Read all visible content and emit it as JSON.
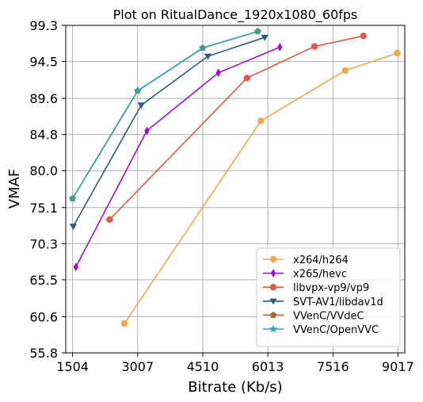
{
  "chart_data": {
    "type": "line",
    "title": "Plot on RitualDance_1920x1080_60fps",
    "xlabel": "Bitrate (Kb/s)",
    "ylabel": "VMAF",
    "xlim": [
      1504,
      9017
    ],
    "ylim": [
      55.8,
      99.3
    ],
    "xticks": [
      "1504",
      "3007",
      "4510",
      "6013",
      "7516",
      "9017"
    ],
    "xtick_values": [
      1504,
      3007,
      4510,
      6013,
      7516,
      9017
    ],
    "yticks": [
      "55.8",
      "60.6",
      "65.5",
      "70.3",
      "75.1",
      "80.0",
      "84.8",
      "89.6",
      "94.5",
      "99.3"
    ],
    "ytick_values": [
      55.8,
      60.6,
      65.5,
      70.3,
      75.1,
      80.0,
      84.8,
      89.6,
      94.5,
      99.3
    ],
    "grid": true,
    "legend_position": "bottom-right",
    "series": [
      {
        "name": "x264/h264",
        "color": "#f0a848",
        "marker": "circle",
        "x": [
          2700,
          5850,
          7800,
          9000
        ],
        "y": [
          59.7,
          86.6,
          93.3,
          95.6
        ]
      },
      {
        "name": "x265/hevc",
        "color": "#9b10d8",
        "marker": "diamond",
        "x": [
          1580,
          3220,
          4870,
          6290
        ],
        "y": [
          67.2,
          85.3,
          93.0,
          96.4
        ]
      },
      {
        "name": "libvpx-vp9/vp9",
        "color": "#e05846",
        "marker": "circle",
        "x": [
          2360,
          5530,
          7090,
          8220
        ],
        "y": [
          73.5,
          92.3,
          96.5,
          97.9
        ]
      },
      {
        "name": "SVT-AV1/libdav1d",
        "color": "#2e5b7c",
        "marker": "triangle-down",
        "x": [
          1520,
          3090,
          4630,
          5940
        ],
        "y": [
          72.6,
          88.7,
          95.2,
          97.7
        ]
      },
      {
        "name": "VVenC/VVdeC",
        "color": "#a8642c",
        "marker": "pentagon",
        "x": [
          1504,
          3007,
          4510,
          5780
        ],
        "y": [
          76.3,
          90.6,
          96.3,
          98.5
        ]
      },
      {
        "name": "VVenC/OpenVVC",
        "color": "#2aa8a8",
        "marker": "star",
        "x": [
          1504,
          3007,
          4510,
          5780
        ],
        "y": [
          76.3,
          90.6,
          96.3,
          98.5
        ]
      }
    ]
  }
}
